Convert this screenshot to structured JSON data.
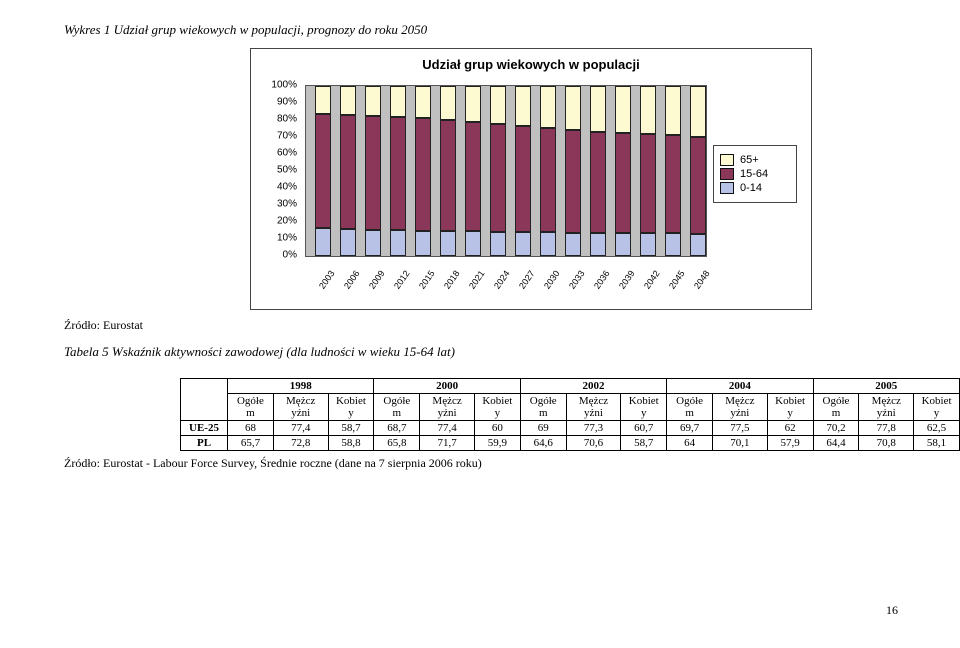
{
  "caption1": "Wykres 1 Udział grup wiekowych w populacji, prognozy do roku 2050",
  "source1": "Źródło: Eurostat",
  "caption2": "Tabela 5 Wskaźnik aktywności zawodowej (dla ludności w wieku 15-64 lat)",
  "source2": "Źródło: Eurostat - Labour Force Survey, Średnie roczne (dane na 7 sierpnia 2006 roku)",
  "pageNum": "16",
  "chart": {
    "title": "Udział grup wiekowych w populacji",
    "y_ticks": [
      "0%",
      "10%",
      "20%",
      "30%",
      "40%",
      "50%",
      "60%",
      "70%",
      "80%",
      "90%",
      "100%"
    ],
    "x_labels": [
      "2003",
      "2006",
      "2009",
      "2012",
      "2015",
      "2018",
      "2021",
      "2024",
      "2027",
      "2030",
      "2033",
      "2036",
      "2039",
      "2042",
      "2045",
      "2048"
    ],
    "colors": {
      "0-14": "#b8c2e6",
      "15-64": "#8a3759",
      "65+": "#fdfad2",
      "grid_bg": "#c0c0c0",
      "border": "#555555"
    },
    "legend": [
      {
        "label": "65+",
        "color": "#fdfad2"
      },
      {
        "label": "15-64",
        "color": "#8a3759"
      },
      {
        "label": "0-14",
        "color": "#b8c2e6"
      }
    ],
    "series": [
      {
        "y": "2003",
        "s": [
          16.4,
          67.1,
          16.5
        ]
      },
      {
        "y": "2006",
        "s": [
          15.8,
          67.2,
          17.0
        ]
      },
      {
        "y": "2009",
        "s": [
          15.4,
          67.1,
          17.5
        ]
      },
      {
        "y": "2012",
        "s": [
          15.2,
          66.8,
          18.0
        ]
      },
      {
        "y": "2015",
        "s": [
          15.0,
          66.0,
          19.0
        ]
      },
      {
        "y": "2018",
        "s": [
          14.8,
          65.2,
          20.0
        ]
      },
      {
        "y": "2021",
        "s": [
          14.6,
          64.3,
          21.1
        ]
      },
      {
        "y": "2024",
        "s": [
          14.4,
          63.3,
          22.3
        ]
      },
      {
        "y": "2027",
        "s": [
          14.2,
          62.3,
          23.5
        ]
      },
      {
        "y": "2030",
        "s": [
          14.0,
          61.3,
          24.7
        ]
      },
      {
        "y": "2033",
        "s": [
          13.8,
          60.4,
          25.8
        ]
      },
      {
        "y": "2036",
        "s": [
          13.6,
          59.5,
          26.9
        ]
      },
      {
        "y": "2039",
        "s": [
          13.5,
          58.7,
          27.8
        ]
      },
      {
        "y": "2042",
        "s": [
          13.4,
          58.1,
          28.5
        ]
      },
      {
        "y": "2045",
        "s": [
          13.3,
          57.6,
          29.1
        ]
      },
      {
        "y": "2048",
        "s": [
          13.2,
          57.1,
          29.7
        ]
      }
    ]
  },
  "table": {
    "year_heads": [
      "1998",
      "2000",
      "2002",
      "2004",
      "2005"
    ],
    "sub_heads": [
      "Ogółe m",
      "Mężcz yźni",
      "Kobiet y"
    ],
    "rowhead1": "UE-25",
    "rowhead2": "PL",
    "rows": [
      [
        "68",
        "77,4",
        "58,7",
        "68,7",
        "77,4",
        "60",
        "69",
        "77,3",
        "60,7",
        "69,7",
        "77,5",
        "62",
        "70,2",
        "77,8",
        "62,5"
      ],
      [
        "65,7",
        "72,8",
        "58,8",
        "65,8",
        "71,7",
        "59,9",
        "64,6",
        "70,6",
        "58,7",
        "64",
        "70,1",
        "57,9",
        "64,4",
        "70,8",
        "58,1"
      ]
    ]
  }
}
